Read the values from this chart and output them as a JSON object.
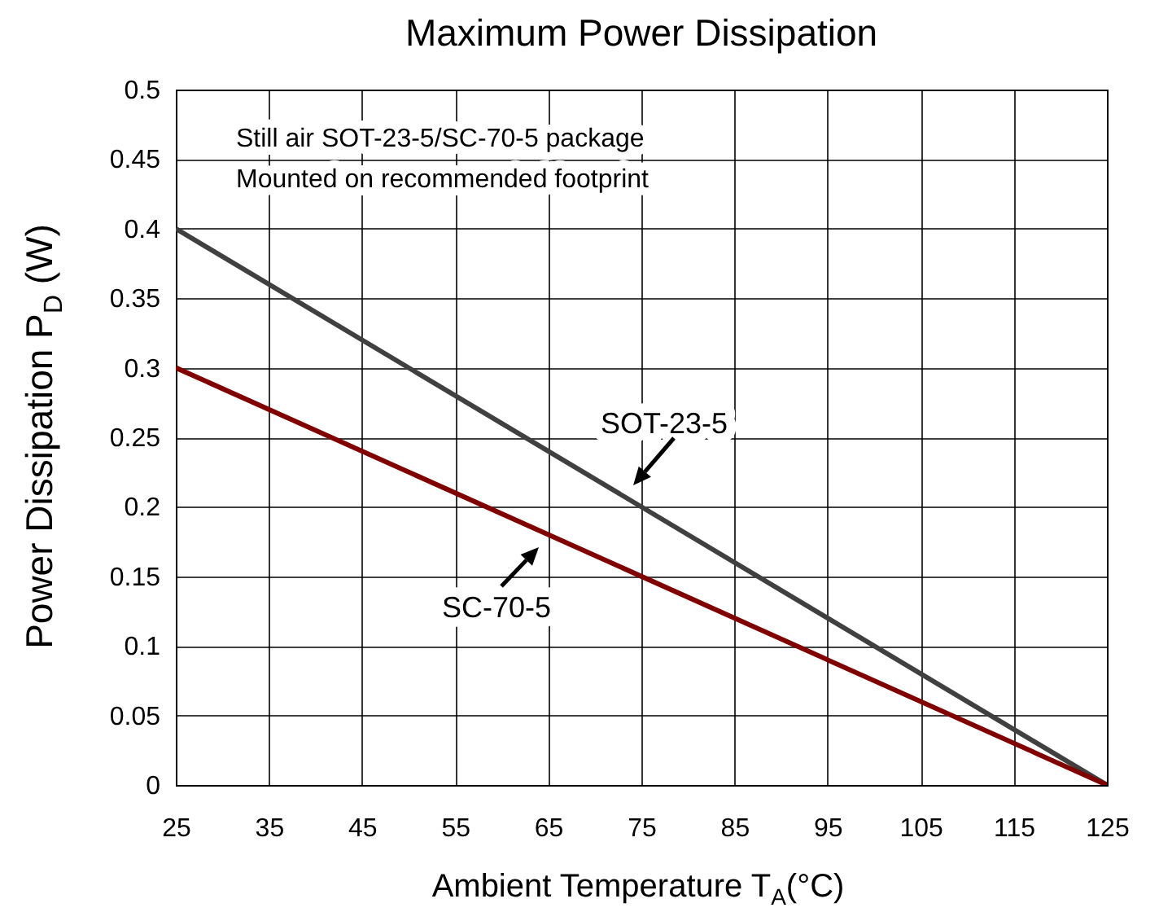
{
  "chart_data": {
    "type": "line",
    "title": "Maximum Power Dissipation",
    "xlabel": "Ambient Temperature T$_{A}$(°C)",
    "ylabel": "Power Dissipation P$_{D}$ (W)",
    "annotations": [
      "Still air SOT-23-5/SC-70-5 package",
      "Mounted on recommended footprint"
    ],
    "x": [
      25,
      125
    ],
    "series": [
      {
        "name": "SOT-23-5",
        "color": "#404040",
        "values": [
          0.4,
          0
        ]
      },
      {
        "name": "SC-70-5",
        "color": "#800000",
        "values": [
          0.3,
          0
        ]
      }
    ],
    "xlim": [
      25,
      125
    ],
    "xticks": [
      25,
      35,
      45,
      55,
      65,
      75,
      85,
      95,
      105,
      115,
      125
    ],
    "ylim": [
      0,
      0.5
    ],
    "yticks": [
      0,
      0.05,
      0.1,
      0.15,
      0.2,
      0.25,
      0.3,
      0.35,
      0.4,
      0.45,
      0.5
    ],
    "grid": true,
    "legend": false,
    "marker": "none",
    "line_style": "solid"
  }
}
